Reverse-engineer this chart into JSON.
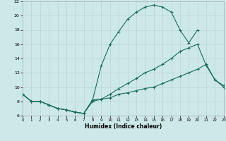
{
  "xlabel": "Humidex (Indice chaleur)",
  "bg_color": "#cde8e8",
  "grid_color": "#b8d4d4",
  "line_color": "#1a6b5a",
  "xlim": [
    0,
    23
  ],
  "ylim": [
    6,
    22
  ],
  "xticks": [
    0,
    1,
    2,
    3,
    4,
    5,
    6,
    7,
    8,
    9,
    10,
    11,
    12,
    13,
    14,
    15,
    16,
    17,
    18,
    19,
    20,
    21,
    22,
    23
  ],
  "yticks": [
    6,
    8,
    10,
    12,
    14,
    16,
    18,
    20,
    22
  ],
  "curve1_x": [
    0,
    1,
    2,
    3,
    4,
    5,
    6,
    7,
    8,
    9,
    10,
    11,
    12,
    13,
    14,
    15,
    16,
    17,
    18,
    19,
    20
  ],
  "curve1_y": [
    9,
    8,
    8,
    7.5,
    7,
    6.8,
    6.5,
    6.3,
    8.2,
    13.0,
    16.0,
    17.8,
    19.5,
    20.5,
    21.2,
    21.5,
    21.2,
    20.5,
    18.0,
    16.2,
    18.0
  ],
  "curve2_x": [
    0,
    1,
    2,
    3,
    4,
    5,
    6,
    7,
    8,
    9,
    10,
    11,
    12,
    13,
    14,
    15,
    16,
    17,
    18,
    19,
    20,
    21,
    22,
    23
  ],
  "curve2_y": [
    9,
    8,
    8,
    7.5,
    7,
    6.8,
    6.5,
    6.3,
    8.2,
    8.3,
    8.5,
    9.0,
    9.2,
    9.5,
    9.8,
    10.0,
    10.5,
    11.0,
    11.5,
    12.0,
    12.5,
    13.2,
    11.0,
    10.2
  ],
  "curve3_x": [
    0,
    1,
    2,
    3,
    4,
    5,
    6,
    7,
    8,
    9,
    10,
    11,
    12,
    13,
    14,
    15,
    16,
    17,
    18,
    19,
    20,
    21,
    22,
    23
  ],
  "curve3_y": [
    9,
    8,
    8,
    7.5,
    7,
    6.8,
    6.5,
    6.3,
    8.0,
    8.3,
    9.0,
    9.8,
    10.5,
    11.2,
    12.0,
    12.5,
    13.2,
    14.0,
    15.0,
    15.5,
    16.0,
    13.0,
    11.0,
    10.0
  ]
}
